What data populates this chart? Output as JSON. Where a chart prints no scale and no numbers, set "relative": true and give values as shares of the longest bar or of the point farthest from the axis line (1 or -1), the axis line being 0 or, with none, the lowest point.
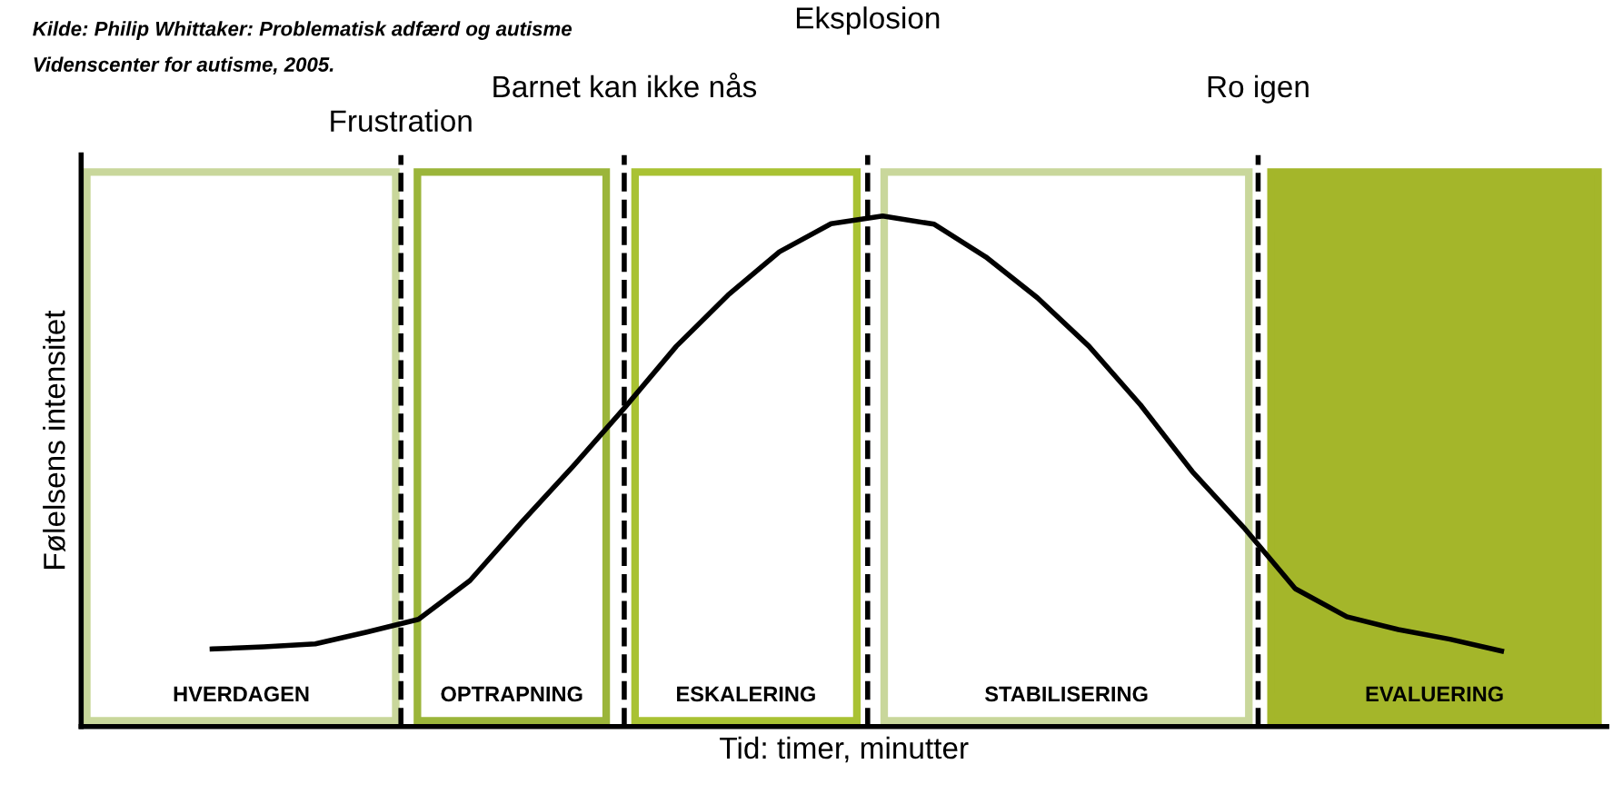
{
  "chart_data": {
    "type": "line",
    "relative": true,
    "xlabel": "Tid: timer, minutter",
    "ylabel": "Følelsens intensitet",
    "annotations": [
      "Kilde: Philip Whittaker: Problematisk adfærd og autisme",
      "Videnscenter for autisme, 2005.",
      "Frustration",
      "Barnet kan ikke nås",
      "Eksplosion",
      "Ro igen",
      "HVERDAGEN",
      "OPTRAPNING",
      "ESKALERING",
      "STABILISERING",
      "EVALUERING"
    ],
    "tick_labels": false,
    "legend": false,
    "marker": "none",
    "line_style": "solid",
    "categories": [
      null,
      null,
      null,
      null,
      null,
      null,
      null,
      null,
      null,
      null,
      null,
      null,
      null,
      null,
      null,
      null,
      null,
      null,
      null,
      null,
      null,
      null,
      null,
      null,
      null,
      null
    ],
    "series": [
      {
        "color": "#000000",
        "values": [
          0.152,
          0.156,
          0.162,
          0.185,
          0.21,
          0.286,
          0.4,
          0.51,
          0.625,
          0.745,
          0.845,
          0.93,
          0.985,
          1.0,
          0.984,
          0.92,
          0.84,
          0.745,
          0.63,
          0.5,
          0.39,
          0.27,
          0.215,
          0.19,
          0.171,
          0.148
        ]
      }
    ]
  }
}
